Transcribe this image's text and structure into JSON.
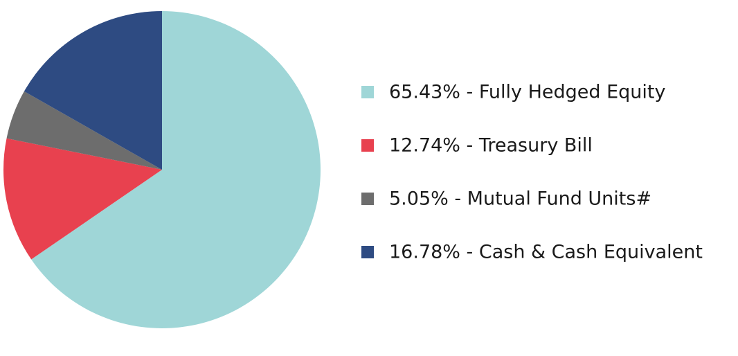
{
  "chart_data": {
    "type": "pie",
    "categories": [
      "65.43% - Fully Hedged Equity",
      "12.74% - Treasury Bill",
      "5.05% - Mutual Fund Units#",
      "16.78% - Cash & Cash Equivalent"
    ],
    "values": [
      65.43,
      12.74,
      5.05,
      16.78
    ],
    "colors": [
      "#9fd6d7",
      "#e8414f",
      "#6d6d6d",
      "#2e4b82"
    ],
    "legend": "right"
  }
}
